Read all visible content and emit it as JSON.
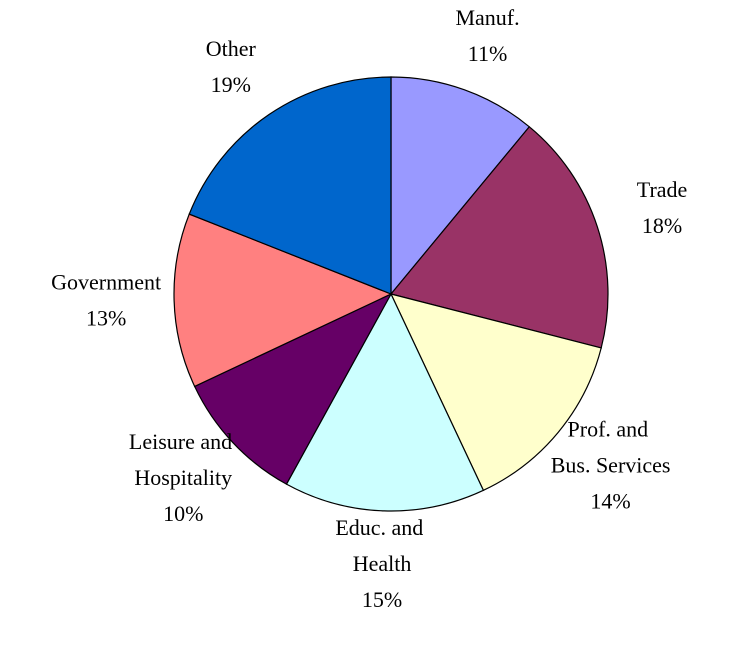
{
  "chart_data": {
    "type": "pie",
    "categories": [
      "Manuf.",
      "Trade",
      "Prof. and Bus. Services",
      "Educ. and Health",
      "Leisure and Hospitality",
      "Government",
      "Other"
    ],
    "values": [
      11,
      18,
      14,
      15,
      10,
      13,
      19
    ],
    "value_labels": [
      "11%",
      "18%",
      "14%",
      "15%",
      "10%",
      "13%",
      "19%"
    ],
    "colors": [
      "#9999ff",
      "#993366",
      "#ffffcc",
      "#ccffff",
      "#660066",
      "#ff8080",
      "#0066cc"
    ]
  }
}
